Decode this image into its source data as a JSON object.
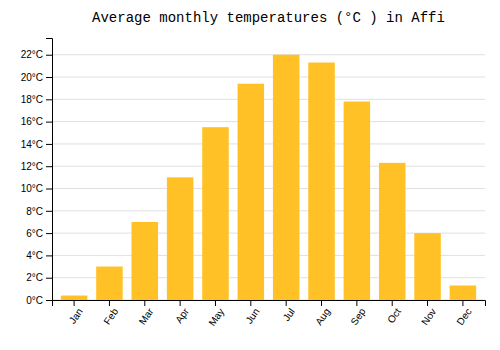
{
  "chart_data": {
    "type": "bar",
    "title": "Average monthly temperatures (°C ) in Affi",
    "categories": [
      "Jan",
      "Feb",
      "Mar",
      "Apr",
      "May",
      "Jun",
      "Jul",
      "Aug",
      "Sep",
      "Oct",
      "Nov",
      "Dec"
    ],
    "values": [
      0.4,
      3.0,
      7.0,
      11.0,
      15.5,
      19.4,
      22.0,
      21.3,
      17.8,
      12.3,
      6.0,
      1.3
    ],
    "color": "#FFC125",
    "ylim": [
      0,
      23.5
    ],
    "yticks": [
      {
        "value": 0,
        "label": "0°C"
      },
      {
        "value": 2,
        "label": "2°C"
      },
      {
        "value": 4,
        "label": "4°C"
      },
      {
        "value": 6,
        "label": "6°C"
      },
      {
        "value": 8,
        "label": "8°C"
      },
      {
        "value": 10,
        "label": "10°C"
      },
      {
        "value": 12,
        "label": "12°C"
      },
      {
        "value": 14,
        "label": "14°C"
      },
      {
        "value": 16,
        "label": "16°C"
      },
      {
        "value": 18,
        "label": "18°C"
      },
      {
        "value": 20,
        "label": "20°C"
      },
      {
        "value": 22,
        "label": "22°C"
      }
    ],
    "grid": true
  }
}
